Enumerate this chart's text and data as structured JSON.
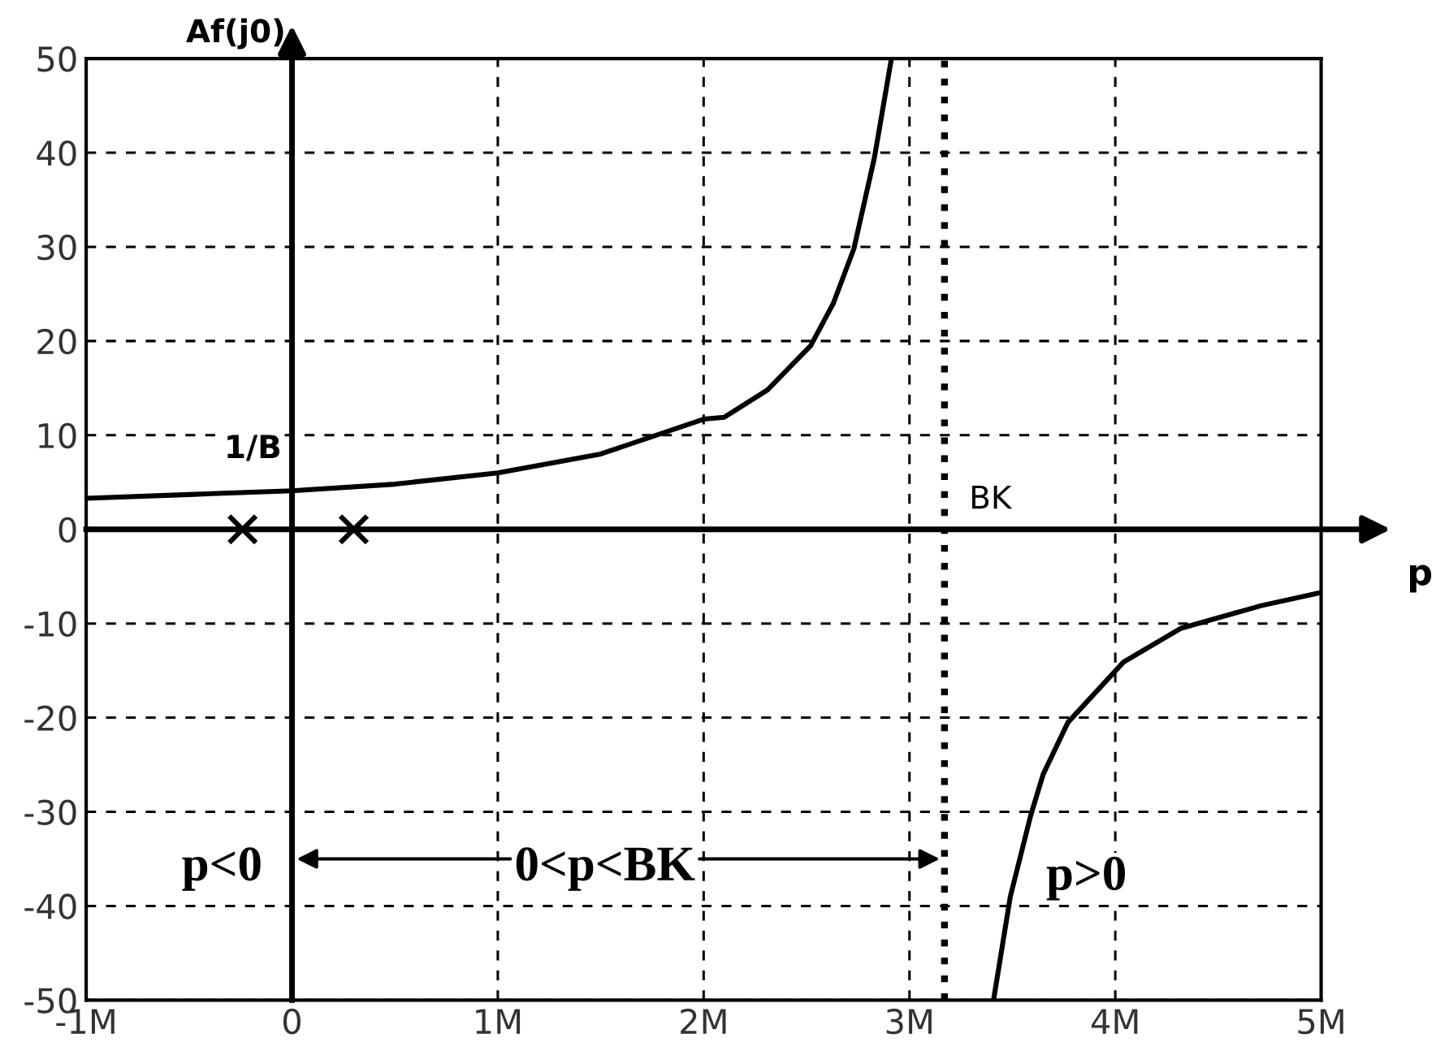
{
  "chart_data": {
    "type": "line",
    "xlabel": "p",
    "ylabel": "Af(j0)",
    "xlim": [
      -1000000,
      5000000
    ],
    "ylim": [
      -50,
      50
    ],
    "xticks": [
      {
        "value": -1000000,
        "label": "-1M"
      },
      0,
      {
        "value": 1000000,
        "label": "1M"
      },
      {
        "value": 2000000,
        "label": "2M"
      },
      {
        "value": 3000000,
        "label": "3M"
      },
      {
        "value": 4000000,
        "label": "4M"
      },
      {
        "value": 5000000,
        "label": "5M"
      }
    ],
    "yticks": [
      -50,
      -40,
      -30,
      -20,
      -10,
      0,
      10,
      20,
      30,
      40,
      50
    ],
    "grid": true,
    "line_style": "solid",
    "marker": "none",
    "series": [
      {
        "color": "#000000",
        "x": [
          -1000000,
          -500000,
          0,
          500000,
          1000000,
          1500000,
          2000000,
          2100000,
          2310000,
          2520000,
          2630000,
          2730000,
          2830000,
          2910000,
          null,
          3410000,
          3490000,
          3590000,
          3650000,
          3770000,
          4040000,
          4320000,
          4710000,
          5000000
        ],
        "values": [
          3.3,
          3.7,
          4.1,
          4.8,
          6.0,
          8.0,
          11.7,
          11.9,
          14.8,
          19.5,
          24,
          29.8,
          39.5,
          49.7,
          null,
          -49.8,
          -39,
          -30.3,
          -26,
          -20.5,
          -14.1,
          -10.5,
          -8.1,
          -6.7
        ]
      },
      {
        "type": "scatter",
        "marker": "cross",
        "color": "#000000",
        "x": [
          -240000,
          300000
        ],
        "values": [
          0,
          0
        ]
      }
    ],
    "ref_lines": [
      {
        "axis": "x",
        "value": 3170000,
        "label": "BK",
        "line_style": "dotted",
        "color": "#000000"
      }
    ],
    "annotations": [
      "1/B",
      "p<0",
      "0<p<BK",
      "p>0"
    ]
  }
}
